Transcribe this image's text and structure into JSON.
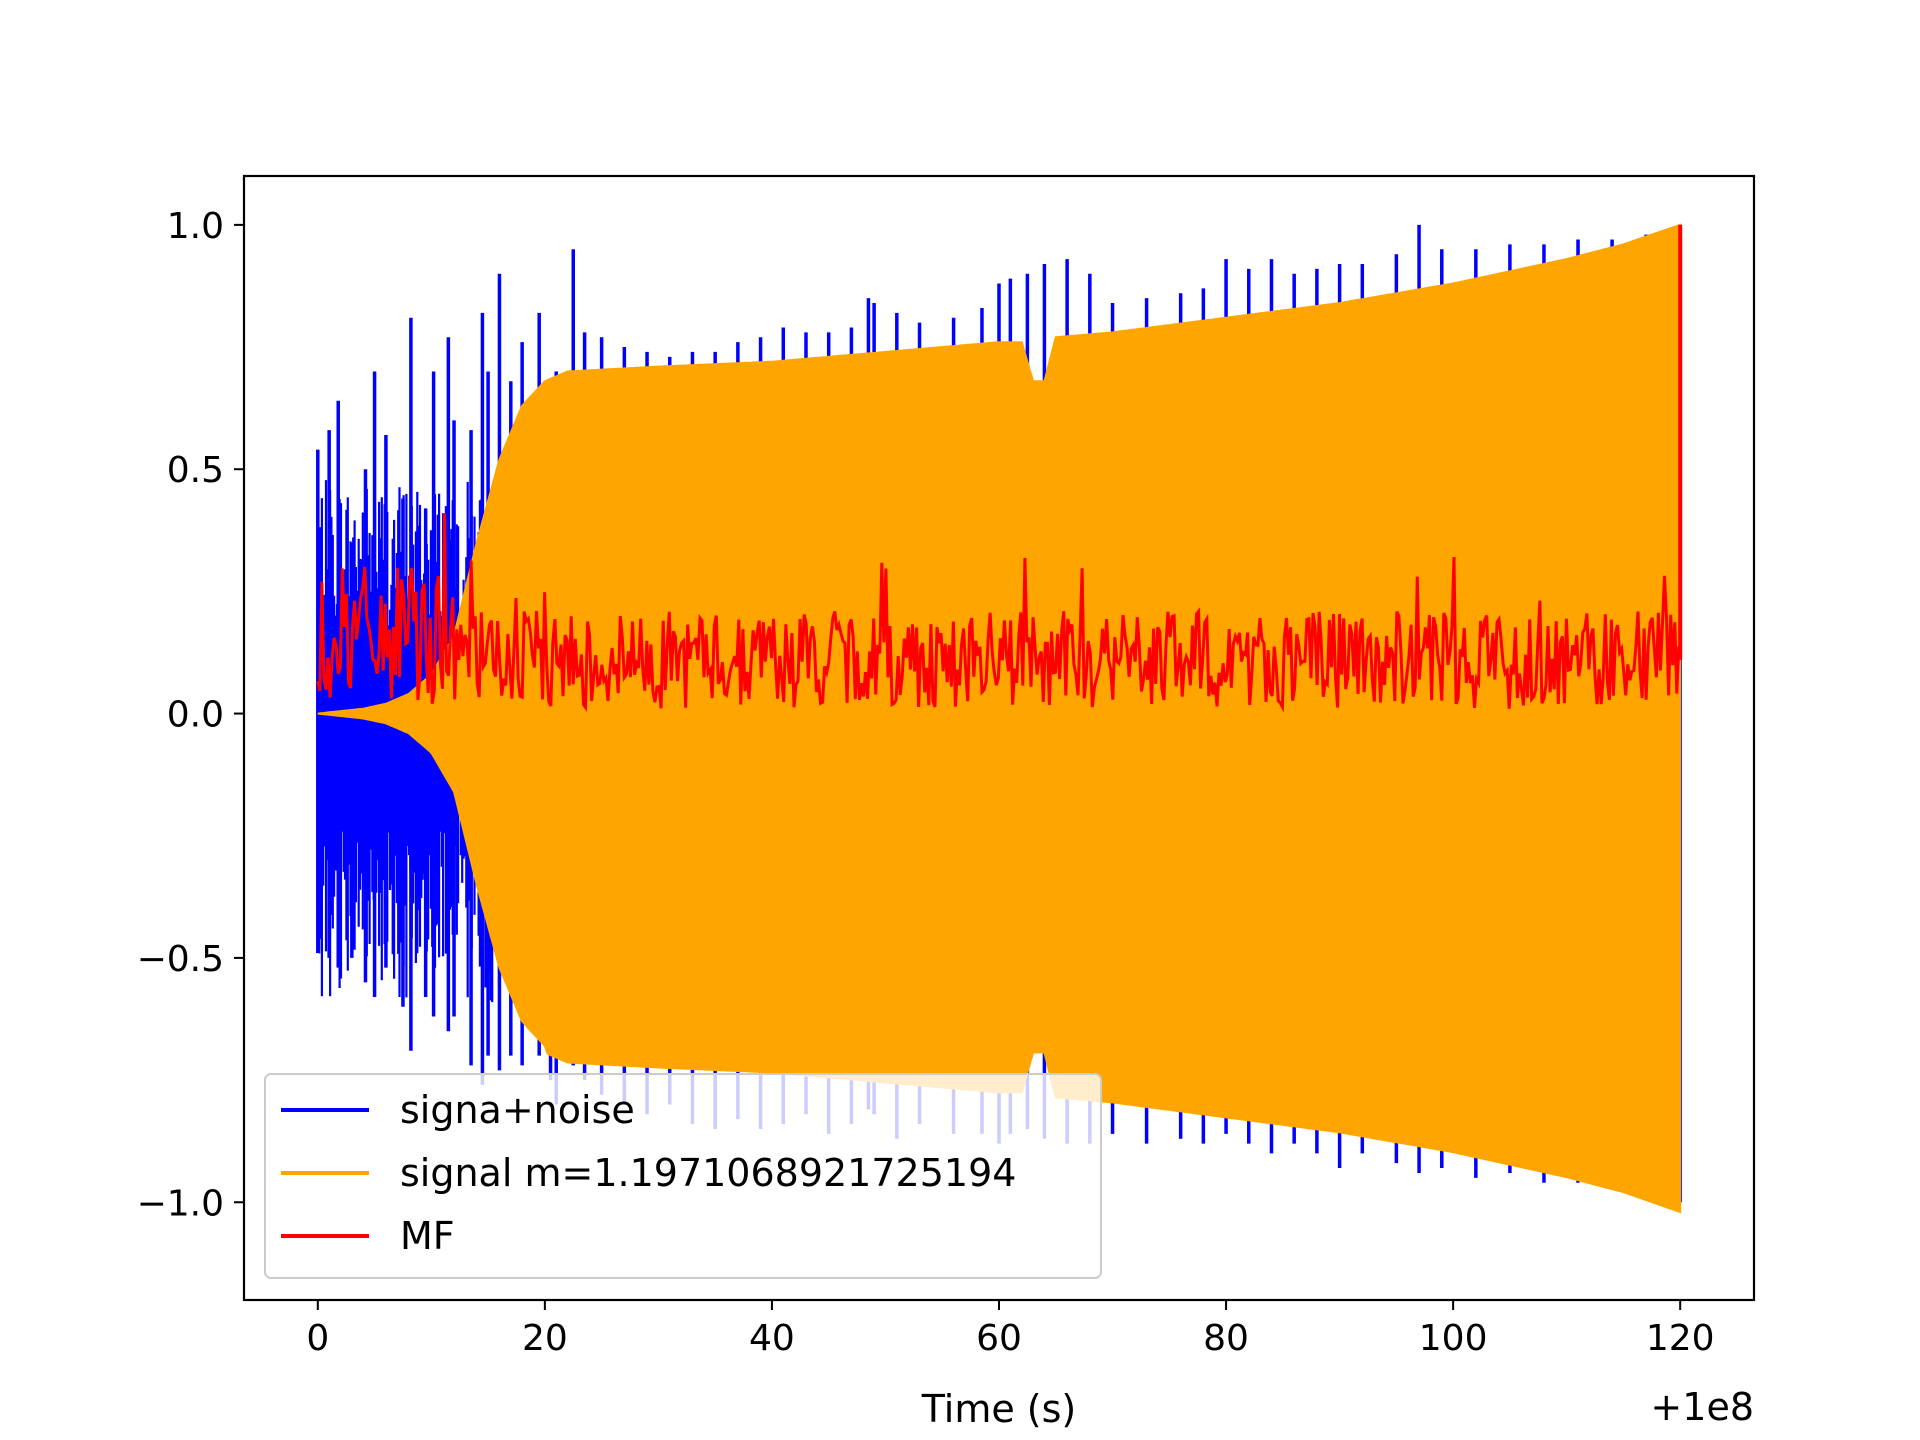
{
  "chart_data": {
    "type": "line",
    "title": "",
    "xlabel": "Time (s)",
    "ylabel": "",
    "x_offset_label": "+1e8",
    "xlim": [
      -6.5,
      126.5
    ],
    "ylim": [
      -1.2,
      1.1
    ],
    "x_ticks": [
      0,
      20,
      40,
      60,
      80,
      100,
      120
    ],
    "x_tick_labels": [
      "0",
      "20",
      "40",
      "60",
      "80",
      "100",
      "120"
    ],
    "y_ticks": [
      1.0,
      0.5,
      0.0,
      -0.5,
      -1.0
    ],
    "y_tick_labels": [
      "1.0",
      "0.5",
      "0.0",
      "−0.5",
      "−1.0"
    ],
    "grid": false,
    "legend_position": "lower-left",
    "series": [
      {
        "name": "signa+noise",
        "color": "#0000ff",
        "spikes": [
          [
            0.0,
            0.54,
            -0.49
          ],
          [
            1.0,
            0.58,
            -0.5
          ],
          [
            1.8,
            0.64,
            -0.52
          ],
          [
            3.0,
            0.35,
            -0.5
          ],
          [
            4.2,
            0.5,
            -0.55
          ],
          [
            5.0,
            0.7,
            -0.58
          ],
          [
            6.0,
            0.57,
            -0.52
          ],
          [
            7.5,
            0.44,
            -0.6
          ],
          [
            8.2,
            0.81,
            -0.69
          ],
          [
            9.5,
            0.42,
            -0.58
          ],
          [
            10.2,
            0.7,
            -0.62
          ],
          [
            11.5,
            0.77,
            -0.65
          ],
          [
            12.0,
            0.6,
            -0.62
          ],
          [
            13.5,
            0.58,
            -0.72
          ],
          [
            14.5,
            0.82,
            -0.76
          ],
          [
            15.0,
            0.7,
            -0.7
          ],
          [
            16.0,
            0.9,
            -0.73
          ],
          [
            17.0,
            0.68,
            -0.7
          ],
          [
            18.0,
            0.76,
            -0.72
          ],
          [
            19.5,
            0.82,
            -0.7
          ],
          [
            20.5,
            0.59,
            -0.75
          ],
          [
            21.0,
            0.7,
            -0.8
          ],
          [
            22.5,
            0.95,
            -0.72
          ],
          [
            23.5,
            0.78,
            -0.75
          ],
          [
            25.0,
            0.77,
            -0.78
          ],
          [
            27.0,
            0.75,
            -0.8
          ],
          [
            29.0,
            0.74,
            -0.82
          ],
          [
            31.0,
            0.73,
            -0.8
          ],
          [
            33.0,
            0.74,
            -0.84
          ],
          [
            35.0,
            0.74,
            -0.85
          ],
          [
            37.0,
            0.76,
            -0.83
          ],
          [
            39.0,
            0.77,
            -0.85
          ],
          [
            41.0,
            0.79,
            -0.84
          ],
          [
            43.0,
            0.78,
            -0.82
          ],
          [
            45.0,
            0.78,
            -0.86
          ],
          [
            47.0,
            0.79,
            -0.84
          ],
          [
            48.5,
            0.85,
            -0.81
          ],
          [
            49.0,
            0.84,
            -0.82
          ],
          [
            51.0,
            0.82,
            -0.87
          ],
          [
            53.0,
            0.8,
            -0.84
          ],
          [
            56.0,
            0.81,
            -0.86
          ],
          [
            58.5,
            0.83,
            -0.86
          ],
          [
            60.0,
            0.88,
            -0.88
          ],
          [
            61.0,
            0.89,
            -0.86
          ],
          [
            62.5,
            0.9,
            -0.85
          ],
          [
            64.0,
            0.92,
            -0.87
          ],
          [
            66.0,
            0.93,
            -0.88
          ],
          [
            68.0,
            0.9,
            -0.88
          ],
          [
            70.0,
            0.84,
            -0.86
          ],
          [
            73.0,
            0.85,
            -0.88
          ],
          [
            76.0,
            0.86,
            -0.87
          ],
          [
            78.0,
            0.87,
            -0.88
          ],
          [
            80.0,
            0.93,
            -0.86
          ],
          [
            82.0,
            0.91,
            -0.88
          ],
          [
            84.0,
            0.93,
            -0.9
          ],
          [
            86.0,
            0.9,
            -0.88
          ],
          [
            88.0,
            0.91,
            -0.9
          ],
          [
            90.0,
            0.92,
            -0.93
          ],
          [
            92.0,
            0.92,
            -0.9
          ],
          [
            95.0,
            0.94,
            -0.92
          ],
          [
            97.0,
            1.0,
            -0.94
          ],
          [
            99.0,
            0.95,
            -0.93
          ],
          [
            102.0,
            0.95,
            -0.95
          ],
          [
            105.0,
            0.96,
            -0.94
          ],
          [
            108.0,
            0.96,
            -0.96
          ],
          [
            111.0,
            0.97,
            -0.96
          ],
          [
            114.0,
            0.97,
            -0.97
          ],
          [
            117.0,
            0.98,
            -0.98
          ],
          [
            120.0,
            1.0,
            -1.0
          ]
        ]
      },
      {
        "name": "signal m=1.1971068921725194",
        "color": "#ffa500",
        "envelope": [
          [
            0,
            0.0
          ],
          [
            2,
            0.005
          ],
          [
            4,
            0.01
          ],
          [
            6,
            0.02
          ],
          [
            8,
            0.04
          ],
          [
            10,
            0.08
          ],
          [
            12,
            0.16
          ],
          [
            14,
            0.35
          ],
          [
            16,
            0.52
          ],
          [
            18,
            0.63
          ],
          [
            20,
            0.68
          ],
          [
            22,
            0.7
          ],
          [
            30,
            0.71
          ],
          [
            40,
            0.72
          ],
          [
            50,
            0.74
          ],
          [
            60,
            0.76
          ],
          [
            62,
            0.76
          ],
          [
            63,
            0.68
          ],
          [
            64,
            0.68
          ],
          [
            65,
            0.77
          ],
          [
            70,
            0.78
          ],
          [
            80,
            0.81
          ],
          [
            90,
            0.84
          ],
          [
            100,
            0.88
          ],
          [
            110,
            0.93
          ],
          [
            115,
            0.96
          ],
          [
            120,
            1.0
          ]
        ]
      },
      {
        "name": "MF",
        "color": "#ff0000",
        "center": 0.11,
        "peak": [
          120,
          1.0
        ]
      }
    ]
  }
}
